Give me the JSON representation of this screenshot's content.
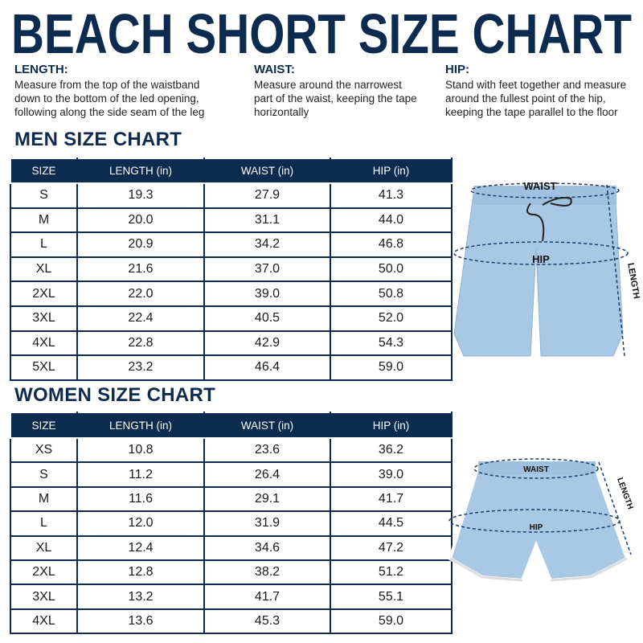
{
  "title": "BEACH SHORT SIZE CHART",
  "measures": [
    {
      "label": "LENGTH:",
      "text": "Measure from the top of the waistband down to the bottom of the led opening, following along the side seam of the leg"
    },
    {
      "label": "WAIST:",
      "text": "Measure around the narrowest part of the waist, keeping the tape horizontally"
    },
    {
      "label": "HIP:",
      "text": "Stand with feet together and measure around the fullest point of the hip, keeping the tape parallel to the floor"
    }
  ],
  "men": {
    "heading": "MEN SIZE CHART",
    "columns": [
      "SIZE",
      "LENGTH (in)",
      "WAIST (in)",
      "HIP (in)"
    ],
    "rows": [
      [
        "S",
        "19.3",
        "27.9",
        "41.3"
      ],
      [
        "M",
        "20.0",
        "31.1",
        "44.0"
      ],
      [
        "L",
        "20.9",
        "34.2",
        "46.8"
      ],
      [
        "XL",
        "21.6",
        "37.0",
        "50.0"
      ],
      [
        "2XL",
        "22.0",
        "39.0",
        "50.8"
      ],
      [
        "3XL",
        "22.4",
        "40.5",
        "52.0"
      ],
      [
        "4XL",
        "22.8",
        "42.9",
        "54.3"
      ],
      [
        "5XL",
        "23.2",
        "46.4",
        "59.0"
      ]
    ]
  },
  "women": {
    "heading": "WOMEN SIZE CHART",
    "columns": [
      "SIZE",
      "LENGTH (in)",
      "WAIST (in)",
      "HIP (in)"
    ],
    "rows": [
      [
        "XS",
        "10.8",
        "23.6",
        "36.2"
      ],
      [
        "S",
        "11.2",
        "26.4",
        "39.0"
      ],
      [
        "M",
        "11.6",
        "29.1",
        "41.7"
      ],
      [
        "L",
        "12.0",
        "31.9",
        "44.5"
      ],
      [
        "XL",
        "12.4",
        "34.6",
        "47.2"
      ],
      [
        "2XL",
        "12.8",
        "38.2",
        "51.2"
      ],
      [
        "3XL",
        "13.2",
        "41.7",
        "55.1"
      ],
      [
        "4XL",
        "13.6",
        "45.3",
        "59.0"
      ]
    ]
  },
  "diagrams": {
    "men": {
      "waist": "WAIST",
      "hip": "HIP",
      "length": "LENGTH"
    },
    "women": {
      "waist": "WAIST",
      "hip": "HIP",
      "length": "LENGTH"
    }
  }
}
